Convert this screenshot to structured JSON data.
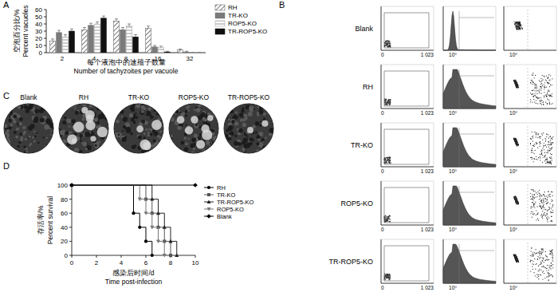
{
  "panel_labels": [
    "A",
    "B",
    "C",
    "D"
  ],
  "chart_data": [
    {
      "type": "bar",
      "y_label_zh": "空泡百分比/%",
      "y_label": "Percent vacuoles",
      "x_label_zh": "每个液泡中的速殖子数量",
      "x_label": "Number of tachyzoites per vacuole",
      "categories": [
        "2",
        "4",
        "8",
        "16",
        "32"
      ],
      "series": [
        {
          "name": "RH",
          "color": "#555555",
          "values": [
            16,
            32,
            44,
            34,
            4
          ],
          "errors": [
            3,
            3,
            3,
            3,
            1
          ]
        },
        {
          "name": "TR-KO",
          "color": "#7a7a7a",
          "values": [
            28,
            38,
            32,
            8,
            1
          ],
          "errors": [
            3,
            3,
            3,
            2,
            1
          ]
        },
        {
          "name": "ROP5-KO",
          "color": "#9a9a9a",
          "values": [
            22,
            40,
            37,
            7,
            0
          ],
          "errors": [
            3,
            3,
            3,
            2,
            0
          ]
        },
        {
          "name": "TR-ROP5-KO",
          "color": "#111111",
          "values": [
            30,
            48,
            22,
            1,
            0
          ],
          "errors": [
            3,
            3,
            3,
            1,
            0
          ]
        }
      ],
      "ylim": [
        0,
        60
      ],
      "yticks": [
        0,
        10,
        20,
        30,
        40,
        50,
        60
      ],
      "legend": "top-right",
      "grid": false
    },
    {
      "type": "line",
      "y_label_zh": "存活率/%",
      "y_label": "Percent survival",
      "x_label_zh": "感染后时间/d",
      "x_label": "Time post-infection",
      "line_style": "step",
      "series": [
        {
          "name": "RH",
          "color": "#000000",
          "marker": "circle",
          "x": [
            0,
            5,
            5.5,
            6,
            6.5
          ],
          "values": [
            100,
            60,
            40,
            20,
            0
          ]
        },
        {
          "name": "TR-KO",
          "color": "#555555",
          "marker": "square",
          "x": [
            0,
            6,
            6.5,
            7,
            7.5,
            8
          ],
          "values": [
            100,
            80,
            60,
            40,
            20,
            0
          ]
        },
        {
          "name": "TR-ROP5-KO",
          "color": "#222222",
          "marker": "triangle",
          "x": [
            0,
            6.5,
            7,
            7.5,
            8,
            8.5
          ],
          "values": [
            100,
            80,
            60,
            40,
            20,
            0
          ]
        },
        {
          "name": "ROP5-KO",
          "color": "#777777",
          "marker": "triangle-down",
          "x": [
            0,
            5.5,
            6,
            6.5,
            7,
            7.5
          ],
          "values": [
            100,
            80,
            60,
            40,
            20,
            0
          ]
        },
        {
          "name": "Blank",
          "color": "#000000",
          "marker": "diamond",
          "x": [
            0,
            10
          ],
          "values": [
            100,
            100
          ]
        }
      ],
      "xlim": [
        0,
        10
      ],
      "xticks": [
        0,
        2,
        4,
        6,
        8,
        10
      ],
      "ylim": [
        0,
        100
      ],
      "yticks": [
        0,
        20,
        40,
        60,
        80,
        100
      ],
      "legend": "right",
      "grid": false
    }
  ],
  "flow": {
    "rows": [
      "Blank",
      "RH",
      "TR-KO",
      "ROP5-KO",
      "TR-ROP5-KO"
    ],
    "gate_ticks": [
      "0",
      "1 023"
    ],
    "hist_ticks": [
      "10⁰"
    ],
    "scatter_ticks": [
      "10⁰"
    ]
  },
  "plaques": {
    "labels": [
      "Blank",
      "RH",
      "TR-KO",
      "ROP5-KO",
      "TR-ROP5-KO"
    ]
  }
}
